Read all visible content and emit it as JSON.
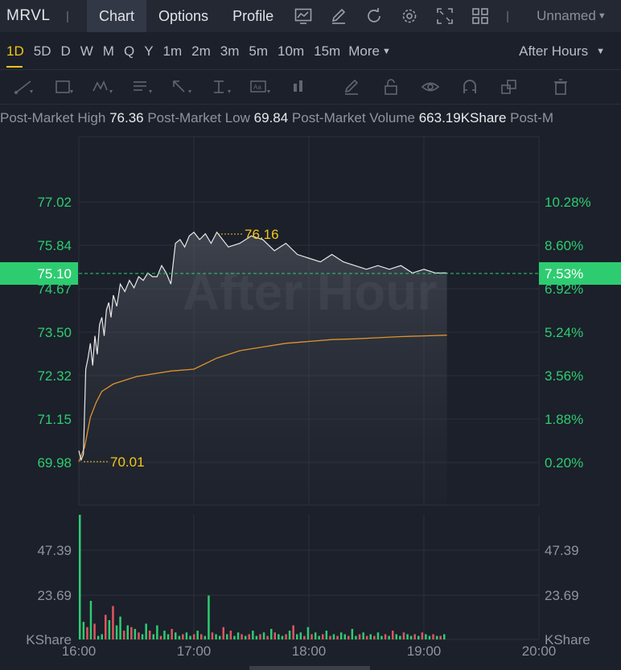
{
  "toolbar": {
    "ticker": "MRVL",
    "separator": "|",
    "tabs": [
      {
        "label": "Chart",
        "active": true
      },
      {
        "label": "Options",
        "active": false
      },
      {
        "label": "Profile",
        "active": false
      }
    ],
    "icons": [
      "chart-settings-icon",
      "draw-icon",
      "refresh-icon",
      "gear-icon",
      "fullscreen-icon",
      "layout-grid-icon"
    ],
    "layout_name": "Unnamed"
  },
  "intervals": {
    "items": [
      "1D",
      "5D",
      "D",
      "W",
      "M",
      "Q",
      "Y",
      "1m",
      "2m",
      "3m",
      "5m",
      "10m",
      "15m"
    ],
    "active": "1D",
    "more_label": "More",
    "session_label": "After Hours"
  },
  "drawing_tools": [
    "trend-line-icon",
    "rectangle-icon",
    "pattern-icon",
    "text-note-icon",
    "arrow-icon",
    "price-range-icon",
    "label-icon",
    "bar-pattern-icon",
    "pencil-icon",
    "lock-icon",
    "eye-icon",
    "magnet-icon",
    "layers-icon",
    "trash-icon"
  ],
  "stats": {
    "high_label": "Post-Market High",
    "high_value": "76.36",
    "low_label": "Post-Market Low",
    "low_value": "69.84",
    "volume_label": "Post-Market Volume",
    "volume_value": "663.19KShare",
    "trailing_label": "Post-M"
  },
  "colors": {
    "up": "#2ecc71",
    "down": "#e05561",
    "price_line": "#e8e8e8",
    "avg_line": "#e0922e",
    "annotation": "#f5c518",
    "current_tag": "#2ecc71"
  },
  "chart_data": {
    "type": "line",
    "watermark": "After Hour",
    "price_axis_left": [
      "77.02",
      "75.84",
      "74.67",
      "73.50",
      "72.32",
      "71.15",
      "69.98"
    ],
    "percent_axis_right": [
      "10.28%",
      "8.60%",
      "6.92%",
      "5.24%",
      "3.56%",
      "1.88%",
      "0.20%"
    ],
    "current_price": "75.10",
    "current_percent": "7.53%",
    "high_marker": "76.16",
    "low_marker": "70.01",
    "x_ticks": [
      "16:00",
      "17:00",
      "18:00",
      "19:00",
      "20:00"
    ],
    "volume_axis": [
      "47.39",
      "23.69"
    ],
    "volume_unit": "KShare",
    "ylim": [
      69.98,
      77.02
    ],
    "series": [
      {
        "kind": "price",
        "x": [
          0.0,
          0.02,
          0.04,
          0.06,
          0.08,
          0.1,
          0.12,
          0.14,
          0.16,
          0.18,
          0.2,
          0.22,
          0.24,
          0.26,
          0.28,
          0.3,
          0.33,
          0.36,
          0.4,
          0.44,
          0.48,
          0.52,
          0.56,
          0.6,
          0.64,
          0.68,
          0.72,
          0.76,
          0.8,
          0.84,
          0.88,
          0.92,
          0.96,
          1.0,
          1.05,
          1.1,
          1.15,
          1.2,
          1.3,
          1.4,
          1.5,
          1.6,
          1.7,
          1.8,
          1.9,
          2.0,
          2.1,
          2.2,
          2.3,
          2.4,
          2.5,
          2.6,
          2.7,
          2.8,
          2.9,
          3.0,
          3.1,
          3.2
        ],
        "y": [
          70.3,
          70.05,
          70.2,
          72.5,
          72.8,
          73.2,
          72.6,
          73.4,
          72.9,
          73.7,
          73.9,
          73.4,
          74.1,
          74.3,
          73.9,
          74.5,
          74.2,
          74.8,
          74.6,
          74.9,
          74.7,
          75.0,
          74.9,
          75.1,
          75.0,
          75.0,
          75.3,
          75.1,
          74.8,
          75.9,
          76.0,
          75.8,
          76.1,
          76.2,
          76.0,
          76.16,
          75.9,
          76.2,
          75.8,
          75.9,
          76.1,
          76.0,
          75.7,
          75.9,
          75.6,
          75.5,
          75.4,
          75.6,
          75.4,
          75.3,
          75.2,
          75.3,
          75.2,
          75.3,
          75.1,
          75.2,
          75.1,
          75.1
        ]
      },
      {
        "kind": "average",
        "x": [
          0.0,
          0.05,
          0.1,
          0.15,
          0.2,
          0.3,
          0.4,
          0.5,
          0.6,
          0.8,
          1.0,
          1.2,
          1.4,
          1.6,
          1.8,
          2.0,
          2.2,
          2.4,
          2.6,
          2.8,
          3.0,
          3.2
        ],
        "y": [
          70.0,
          70.4,
          71.2,
          71.6,
          71.9,
          72.1,
          72.2,
          72.3,
          72.35,
          72.45,
          72.5,
          72.8,
          73.0,
          73.1,
          73.2,
          73.25,
          73.3,
          73.32,
          73.35,
          73.38,
          73.4,
          73.42
        ]
      }
    ],
    "volume_bars": {
      "max_display": 71.0,
      "values": [
        71,
        10,
        7,
        22,
        9,
        2,
        3,
        14,
        11,
        19,
        8,
        13,
        5,
        8,
        7,
        6,
        4,
        3,
        9,
        5,
        3,
        8,
        2,
        5,
        3,
        6,
        4,
        2,
        3,
        4,
        2,
        3,
        5,
        3,
        2,
        25,
        4,
        3,
        2,
        7,
        3,
        5,
        2,
        4,
        3,
        2,
        3,
        5,
        2,
        3,
        4,
        2,
        6,
        4,
        3,
        2,
        3,
        5,
        8,
        3,
        4,
        2,
        7,
        3,
        4,
        2,
        3,
        5,
        2,
        3,
        2,
        4,
        3,
        2,
        6,
        2,
        3,
        4,
        2,
        3,
        2,
        4,
        2,
        3,
        2,
        5,
        3,
        2,
        4,
        3,
        2,
        3,
        2,
        4,
        3,
        2,
        3,
        2,
        2,
        3
      ],
      "up": [
        1,
        1,
        0,
        1,
        0,
        1,
        1,
        0,
        1,
        0,
        1,
        1,
        0,
        1,
        0,
        1,
        0,
        1,
        1,
        0,
        1,
        1,
        0,
        1,
        1,
        0,
        1,
        1,
        0,
        1,
        1,
        0,
        1,
        0,
        1,
        1,
        0,
        1,
        1,
        0,
        1,
        0,
        1,
        1,
        0,
        1,
        0,
        1,
        1,
        0,
        1,
        0,
        1,
        0,
        1,
        1,
        0,
        1,
        0,
        1,
        1,
        0,
        1,
        0,
        1,
        1,
        0,
        1,
        0,
        1,
        0,
        1,
        1,
        0,
        1,
        1,
        0,
        1,
        0,
        1,
        0,
        1,
        1,
        0,
        1,
        0,
        1,
        1,
        0,
        1,
        1,
        0,
        1,
        0,
        1,
        1,
        0,
        1,
        0,
        1
      ]
    }
  }
}
